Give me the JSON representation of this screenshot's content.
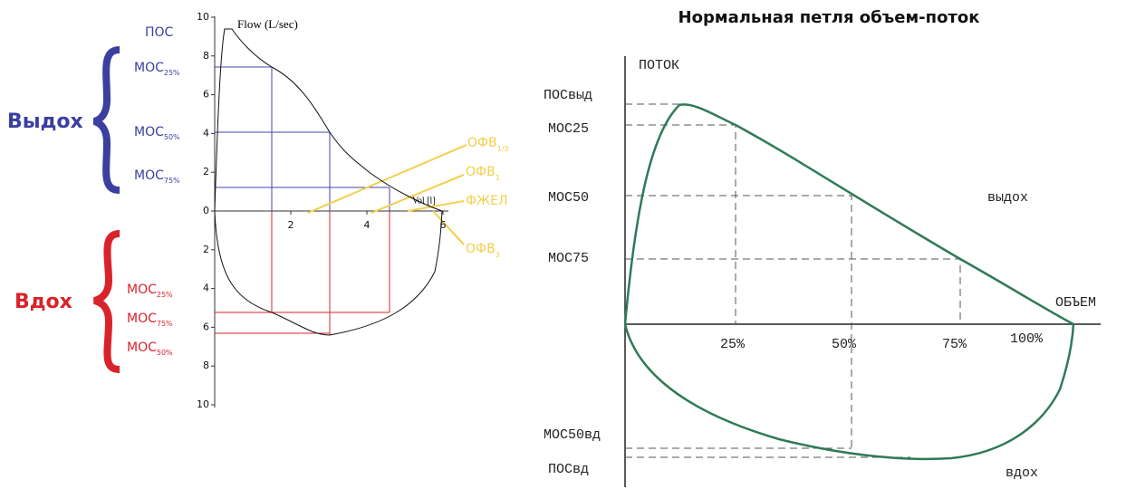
{
  "left": {
    "y_axis_label": "Flow (L/sec)",
    "x_axis_label": "Vol [l]",
    "yticks_up": [
      10,
      8,
      6,
      4,
      2,
      0
    ],
    "yticks_down": [
      2,
      4,
      6,
      8,
      10
    ],
    "xticks": [
      2,
      4,
      6
    ],
    "expiration": {
      "label": "Выдох",
      "pos": "ПОС",
      "mos": [
        {
          "text": "МОС",
          "sub": "25%"
        },
        {
          "text": "МОС",
          "sub": "50%"
        },
        {
          "text": "МОС",
          "sub": "75%"
        }
      ]
    },
    "inspiration": {
      "label": "Вдох",
      "mos": [
        {
          "text": "МОС",
          "sub": "25%"
        },
        {
          "text": "МОС",
          "sub": "75%"
        },
        {
          "text": "МОС",
          "sub": "50%"
        }
      ]
    },
    "markers": [
      {
        "text": "ОФВ",
        "sub": "1/3"
      },
      {
        "text": "ОФВ",
        "sub": "1"
      },
      {
        "text": "ФЖЕЛ"
      },
      {
        "text": "ОФВ",
        "sub": "3"
      }
    ]
  },
  "right": {
    "title": "Нормальная петля объем-поток",
    "y_axis_label": "ПОТОК",
    "x_axis_label": "ОБЪЕМ",
    "pos_exp": "ПОСвыд",
    "mos_exp": [
      "МОС25",
      "МОС50",
      "МОС75"
    ],
    "exp_label": "выдох",
    "percents": [
      "25%",
      "50%",
      "75%",
      "100%"
    ],
    "mos_insp": "МОС50вд",
    "pos_insp": "ПОСвд",
    "insp_label": "вдох"
  }
}
